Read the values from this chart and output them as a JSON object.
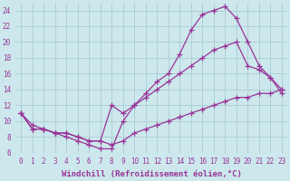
{
  "background_color": "#cce8ec",
  "grid_color": "#aaccd4",
  "line_color": "#993399",
  "marker": "+",
  "marker_size": 4,
  "line_width": 0.9,
  "xlim": [
    -0.5,
    23.5
  ],
  "ylim": [
    6,
    25
  ],
  "yticks": [
    6,
    8,
    10,
    12,
    14,
    16,
    18,
    20,
    22,
    24
  ],
  "xticks": [
    0,
    1,
    2,
    3,
    4,
    5,
    6,
    7,
    8,
    9,
    10,
    11,
    12,
    13,
    14,
    15,
    16,
    17,
    18,
    19,
    20,
    21,
    22,
    23
  ],
  "xlabel": "Windchill (Refroidissement éolien,°C)",
  "xlabel_fontsize": 6.5,
  "tick_fontsize": 5.5,
  "curve1_x": [
    0,
    1,
    2,
    3,
    4,
    5,
    6,
    7,
    8,
    9,
    10,
    11,
    12,
    13,
    14,
    15,
    16,
    17,
    18,
    19,
    20,
    21,
    22,
    23
  ],
  "curve1_y": [
    11,
    9,
    9,
    8.5,
    8.5,
    8,
    7.5,
    7.5,
    7,
    7.5,
    8.5,
    9,
    9.5,
    10,
    10.5,
    11,
    11.5,
    12,
    12.5,
    13,
    13,
    13.5,
    13.5,
    14
  ],
  "curve2_x": [
    0,
    1,
    2,
    3,
    4,
    5,
    6,
    7,
    8,
    9,
    10,
    11,
    12,
    13,
    14,
    15,
    16,
    17,
    18,
    19,
    20,
    21,
    22,
    23
  ],
  "curve2_y": [
    11,
    9.5,
    9,
    8.5,
    8.5,
    8,
    7.5,
    7.5,
    12,
    11,
    12,
    13,
    14,
    15,
    16,
    17,
    18,
    19,
    19.5,
    20,
    17,
    16.5,
    15.5,
    14
  ],
  "curve3_x": [
    0,
    1,
    2,
    3,
    4,
    5,
    6,
    7,
    8,
    9,
    10,
    11,
    12,
    13,
    14,
    15,
    16,
    17,
    18,
    19,
    20,
    21,
    22,
    23
  ],
  "curve3_y": [
    11,
    9,
    9,
    8.5,
    8,
    7.5,
    7,
    6.5,
    6.5,
    10,
    12,
    13.5,
    15,
    16,
    18.5,
    21.5,
    23.5,
    24,
    24.5,
    23,
    20,
    17,
    15.5,
    13.5
  ]
}
